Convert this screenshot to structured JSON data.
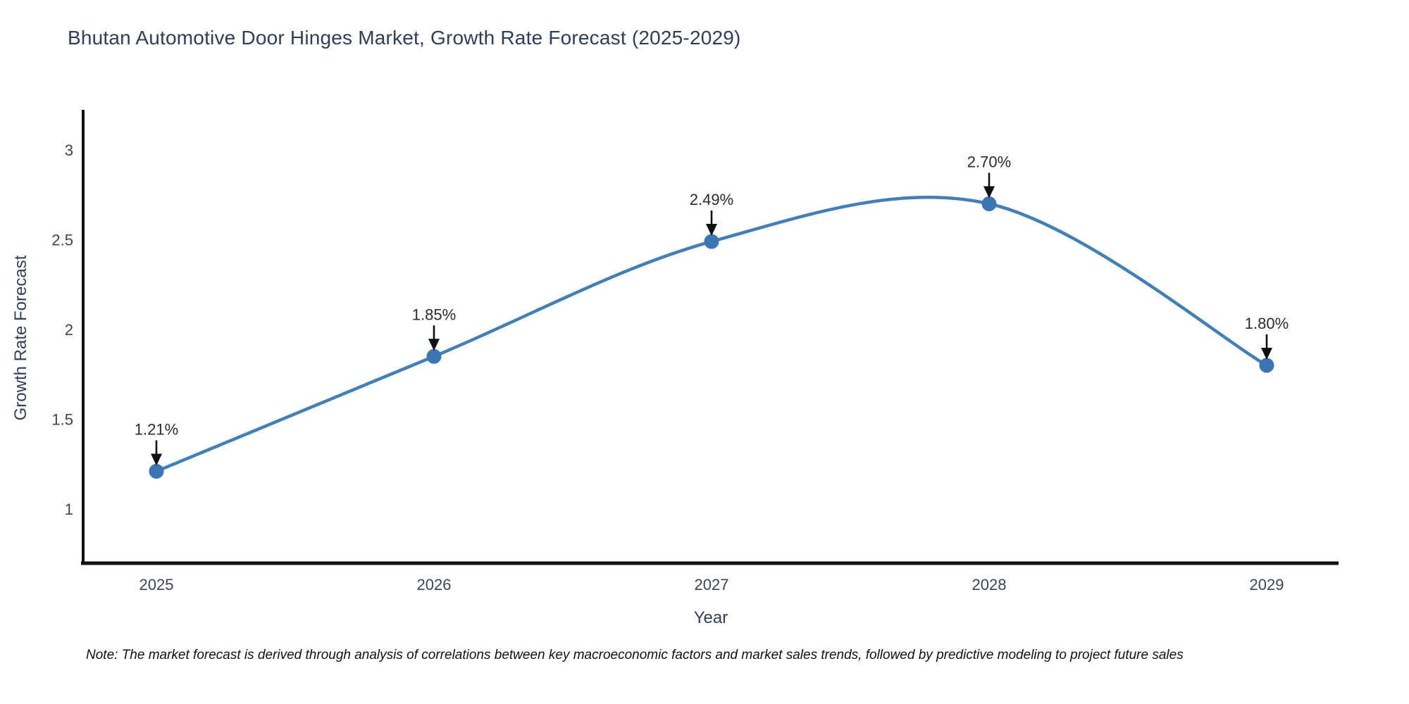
{
  "page": {
    "background": "#ffffff"
  },
  "note": "Note: The market forecast is derived through analysis of correlations between key macroeconomic factors and market sales trends, followed by predictive modeling to project future sales",
  "chart_data": {
    "type": "line",
    "title": "Bhutan Automotive Door Hinges Market, Growth Rate Forecast (2025-2029)",
    "xlabel": "Year",
    "ylabel": "Growth Rate Forecast",
    "categories": [
      "2025",
      "2026",
      "2027",
      "2028",
      "2029"
    ],
    "values": [
      1.21,
      1.85,
      2.49,
      2.7,
      1.8
    ],
    "point_labels": [
      "1.21%",
      "1.85%",
      "2.49%",
      "2.70%",
      "1.80%"
    ],
    "yticks": [
      1,
      1.5,
      2,
      2.5,
      3
    ],
    "ytick_labels": [
      "1",
      "1.5",
      "2",
      "2.5",
      "3"
    ],
    "ylim": [
      0.7,
      3.22
    ],
    "line_shape": "spline",
    "grid": false,
    "legend_position": "none",
    "colors": {
      "line": "#3f7fba",
      "marker": "#3a76b4",
      "annotation_text": "#2b2b2b",
      "annotation_arrow": "#111111",
      "axis_line": "#111111",
      "tick_text": "#3a4656",
      "title_text": "#2e3e5c"
    }
  }
}
